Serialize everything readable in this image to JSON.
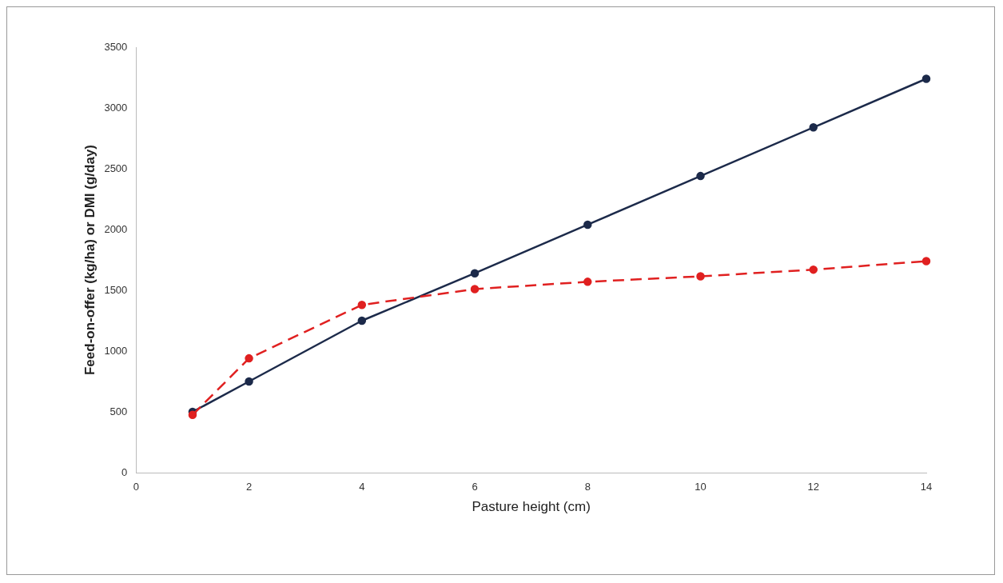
{
  "chart_data": {
    "type": "line",
    "xlabel": "Pasture height (cm)",
    "ylabel": "Feed-on-offer (kg/ha) or DMI (g/day)",
    "x": [
      1,
      2,
      4,
      6,
      8,
      10,
      12,
      14
    ],
    "series": [
      {
        "color": "#1c2a4a",
        "values": [
          500,
          750,
          1250,
          1640,
          2040,
          2440,
          2840,
          3240
        ],
        "line_style": "solid"
      },
      {
        "color": "#e02020",
        "values": [
          475,
          940,
          1380,
          1510,
          1570,
          1615,
          1670,
          1740
        ],
        "line_style": "dashed"
      }
    ],
    "xlim": [
      0,
      14
    ],
    "xticks": [
      0,
      2,
      4,
      6,
      8,
      10,
      12,
      14
    ],
    "ylim": [
      0,
      3500
    ],
    "yticks": [
      0,
      500,
      1000,
      1500,
      2000,
      2500,
      3000,
      3500
    ],
    "grid": false,
    "legend": false,
    "marker": "circle"
  }
}
